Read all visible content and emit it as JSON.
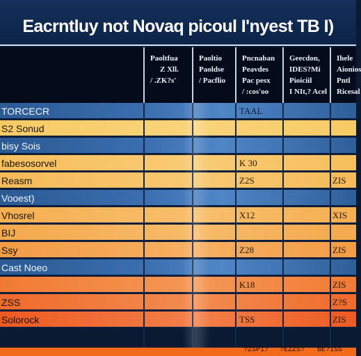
{
  "chart_data": {
    "type": "table",
    "title": "Eacrntluy not Novaq picoul I'nyest TB I)",
    "columns": [
      [
        "",
        "",
        ""
      ],
      [
        "Paoltfua",
        "Z Xll.",
        "/ .ZK?s'"
      ],
      [
        "Paoltio",
        "Paoldse",
        "/ Pacflio"
      ],
      [
        "Pncnaban",
        "Peavdes",
        "Pac pesx",
        "/ :cos'oo"
      ],
      [
        "Geecdon,",
        "IDES?Mi",
        "Pioiciil",
        "I NIt,? Acel"
      ],
      [
        "Ihele",
        "Aionios",
        "Pntl",
        "Ricesal"
      ]
    ],
    "rows": [
      {
        "label": "TORCECR",
        "section": true,
        "cells": [
          "",
          "",
          "TAAL",
          "",
          ""
        ]
      },
      {
        "label": "S2 Sonud",
        "section": false,
        "cells": [
          "",
          "",
          "",
          "",
          ""
        ]
      },
      {
        "label": "bisy Sois",
        "section": true,
        "cells": [
          "",
          "",
          "",
          "",
          ""
        ]
      },
      {
        "label": "fabesosorvel",
        "section": false,
        "cells": [
          "",
          "",
          "K 30",
          "",
          ""
        ]
      },
      {
        "label": "Reasm",
        "section": false,
        "cells": [
          "",
          "",
          "Z2S",
          "",
          "ZIS"
        ]
      },
      {
        "label": "Vooest)",
        "section": true,
        "cells": [
          "",
          "",
          "",
          "",
          ""
        ]
      },
      {
        "label": "Vhosrel",
        "section": false,
        "cells": [
          "",
          "",
          "X12",
          "",
          "XIS"
        ]
      },
      {
        "label": "BIJ",
        "section": false,
        "cells": [
          "",
          "",
          "",
          "",
          ""
        ]
      },
      {
        "label": "Ssy",
        "section": false,
        "cells": [
          "",
          "",
          "Z28",
          "",
          "ZIS"
        ]
      },
      {
        "label": "Cast Noeo",
        "section": true,
        "cells": [
          "",
          "",
          "",
          "",
          ""
        ]
      },
      {
        "label": "",
        "section": false,
        "cells": [
          "",
          "",
          "K18",
          "",
          "ZIS"
        ]
      },
      {
        "label": "ZSS",
        "section": false,
        "cells": [
          "",
          "",
          "",
          "",
          "Z?S"
        ]
      },
      {
        "label": "Solorock",
        "section": false,
        "cells": [
          "",
          "",
          "TSS",
          "",
          "ZIS"
        ]
      }
    ],
    "footer": [
      "?ZSP1?",
      "?EZZS?",
      "BE?1SS"
    ],
    "colors": {
      "header_bg": "#0c2348",
      "section_row": "#2f5f9a",
      "row_yellow": "#f8d068",
      "row_orange": "#f4a84c",
      "row_red": "#ee5a22"
    }
  }
}
